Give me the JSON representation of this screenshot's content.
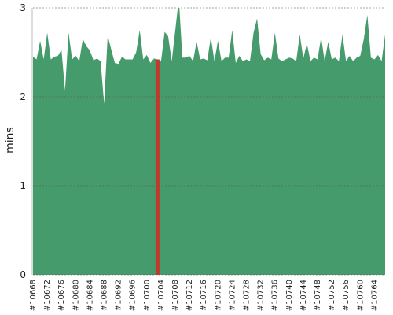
{
  "chart_data": {
    "type": "area",
    "y_label": "mins",
    "categories": [
      "#10668",
      null,
      null,
      null,
      "#10672",
      null,
      null,
      null,
      "#10676",
      null,
      null,
      null,
      "#10680",
      null,
      null,
      null,
      "#10684",
      null,
      null,
      null,
      "#10688",
      null,
      null,
      null,
      "#10692",
      null,
      null,
      null,
      "#10696",
      null,
      null,
      null,
      "#10700",
      null,
      null,
      null,
      "#10704",
      null,
      null,
      null,
      "#10708",
      null,
      null,
      null,
      "#10712",
      null,
      null,
      null,
      "#10716",
      null,
      null,
      null,
      "#10720",
      null,
      null,
      null,
      "#10724",
      null,
      null,
      null,
      "#10728",
      null,
      null,
      null,
      "#10732",
      null,
      null,
      null,
      "#10736",
      null,
      null,
      null,
      "#10740",
      null,
      null,
      null,
      "#10744",
      null,
      null,
      null,
      "#10748",
      null,
      null,
      null,
      "#10752",
      null,
      null,
      null,
      "#10756",
      null,
      null,
      null,
      "#10760",
      null,
      null,
      null,
      "#10764",
      null,
      null,
      null
    ],
    "series": [
      {
        "color": "#469b6c",
        "values": [
          2.45,
          2.42,
          2.63,
          2.42,
          2.72,
          2.42,
          2.45,
          2.46,
          2.53,
          2.07,
          2.72,
          2.42,
          2.46,
          2.4,
          2.65,
          2.57,
          2.52,
          2.41,
          2.43,
          2.4,
          1.92,
          2.69,
          2.53,
          2.38,
          2.37,
          2.45,
          2.42,
          2.42,
          2.42,
          2.5,
          2.75,
          2.42,
          2.47,
          2.38,
          2.43,
          2.42,
          2.4,
          2.73,
          2.68,
          2.4,
          2.75,
          3.1,
          2.44,
          2.44,
          2.46,
          2.4,
          2.62,
          2.42,
          2.43,
          2.41,
          2.67,
          2.4,
          2.63,
          2.4,
          2.44,
          2.44,
          2.75,
          2.38,
          2.46,
          2.4,
          2.42,
          2.4,
          2.72,
          2.88,
          2.48,
          2.41,
          2.44,
          2.42,
          2.72,
          2.43,
          2.4,
          2.42,
          2.44,
          2.43,
          2.4,
          2.7,
          2.43,
          2.6,
          2.4,
          2.44,
          2.42,
          2.67,
          2.4,
          2.62,
          2.42,
          2.44,
          2.4,
          2.7,
          2.4,
          2.46,
          2.4,
          2.44,
          2.46,
          2.65,
          2.92,
          2.44,
          2.42,
          2.47,
          2.4,
          2.7
        ]
      },
      {
        "color": "#c0392b",
        "type": "bar",
        "values": [
          null,
          null,
          null,
          null,
          null,
          null,
          null,
          null,
          null,
          null,
          null,
          null,
          null,
          null,
          null,
          null,
          null,
          null,
          null,
          null,
          null,
          null,
          null,
          null,
          null,
          null,
          null,
          null,
          null,
          null,
          null,
          null,
          null,
          null,
          null,
          2.42,
          null,
          null,
          null,
          null,
          null,
          null,
          null,
          null,
          null,
          null,
          null,
          null,
          null,
          null,
          null,
          null,
          null,
          null,
          null,
          null,
          null,
          null,
          null,
          null,
          null,
          null,
          null,
          null,
          null,
          null,
          null,
          null,
          null,
          null,
          null,
          null,
          null,
          null,
          null,
          null,
          null,
          null,
          null,
          null,
          null,
          null,
          null,
          null,
          null,
          null,
          null,
          null,
          null,
          null,
          null,
          null,
          null,
          null,
          null,
          null,
          null,
          null,
          null,
          null
        ]
      }
    ],
    "ylim": [
      0,
      3
    ],
    "yticks": [
      0,
      1,
      2,
      3
    ],
    "grid": true
  }
}
